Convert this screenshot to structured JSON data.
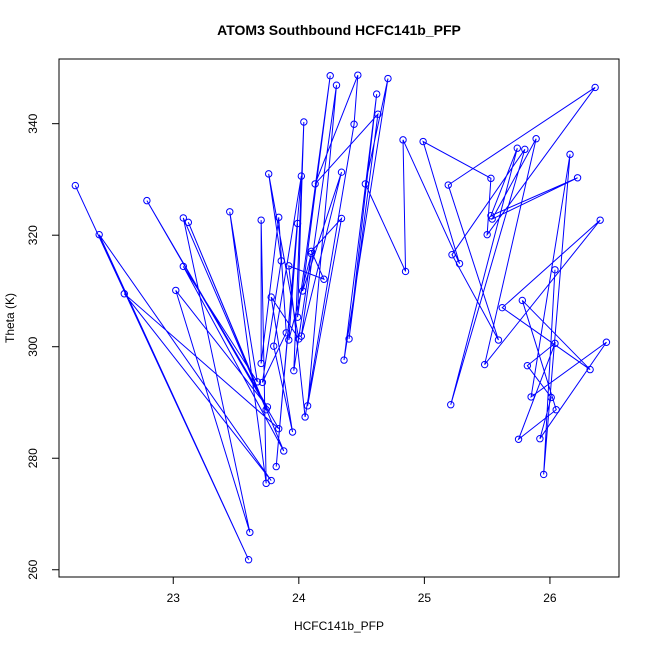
{
  "chart_data": {
    "type": "line",
    "title": "ATOM3 Southbound HCFC141b_PFP",
    "xlabel": "HCFC141b_PFP",
    "ylabel": "Theta (K)",
    "xlim": [
      22.09,
      26.55
    ],
    "ylim": [
      258.7,
      351.6
    ],
    "x_ticks": [
      23,
      24,
      25,
      26
    ],
    "y_ticks": [
      260,
      280,
      300,
      320,
      340
    ],
    "x_tick_labels": [
      "23",
      "24",
      "25",
      "26"
    ],
    "y_tick_labels": [
      "260",
      "280",
      "300",
      "320",
      "340"
    ],
    "grid": false,
    "legend": "none",
    "line_color": "#0000ff",
    "marker": "open-circle",
    "series": [
      {
        "x": [
          22.22,
          23.6,
          22.41,
          23.78,
          22.61,
          23.84,
          22.79,
          23.75,
          23.02,
          23.61,
          23.08,
          23.74,
          23.12,
          23.88,
          23.08,
          23.67,
          23.45,
          23.74,
          23.7,
          23.7,
          23.84,
          23.9,
          23.71,
          23.86,
          23.76,
          24.0,
          23.78,
          23.95,
          23.8,
          24.02,
          23.82,
          23.99,
          23.92,
          24.1,
          23.96,
          24.04,
          23.99,
          24.25,
          24.03,
          24.34,
          24.02,
          24.3,
          24.07,
          24.34,
          24.1,
          24.2,
          23.92,
          24.05,
          24.44,
          24.47,
          24.13,
          24.63,
          24.4,
          24.62,
          24.36,
          24.71,
          24.53,
          24.85,
          24.83,
          25.28,
          24.99,
          25.53,
          25.5,
          26.36,
          25.19,
          25.59,
          25.22,
          25.8,
          25.21,
          25.74,
          25.53,
          26.22,
          25.54,
          25.89,
          25.48,
          26.4,
          25.62,
          26.32,
          25.78,
          26.05,
          25.75,
          26.04,
          25.82,
          26.01,
          25.92,
          26.45,
          25.85,
          26.16,
          25.95,
          26.04
        ],
        "y": [
          328.9,
          261.8,
          320.1,
          276.0,
          309.5,
          285.3,
          326.2,
          289.2,
          310.1,
          266.7,
          323.1,
          288.7,
          322.3,
          281.3,
          314.4,
          293.7,
          324.2,
          275.5,
          322.7,
          297.0,
          323.2,
          302.5,
          293.6,
          315.4,
          331.0,
          301.4,
          308.9,
          284.7,
          300.1,
          330.6,
          278.5,
          322.1,
          301.2,
          316.7,
          295.7,
          340.3,
          305.3,
          348.6,
          310.0,
          331.3,
          301.9,
          346.9,
          289.4,
          323.0,
          317.1,
          312.1,
          314.5,
          287.4,
          339.9,
          348.7,
          329.2,
          341.7,
          301.4,
          345.3,
          297.6,
          348.1,
          329.2,
          313.5,
          337.1,
          314.9,
          336.8,
          330.2,
          320.1,
          346.5,
          329.0,
          301.2,
          316.5,
          335.4,
          289.6,
          335.6,
          323.5,
          330.3,
          322.9,
          337.3,
          296.8,
          322.7,
          307.0,
          295.9,
          308.3,
          288.7,
          283.4,
          300.6,
          296.6,
          290.9,
          283.5,
          300.8,
          291.0,
          334.5,
          277.1,
          313.8
        ]
      }
    ]
  }
}
